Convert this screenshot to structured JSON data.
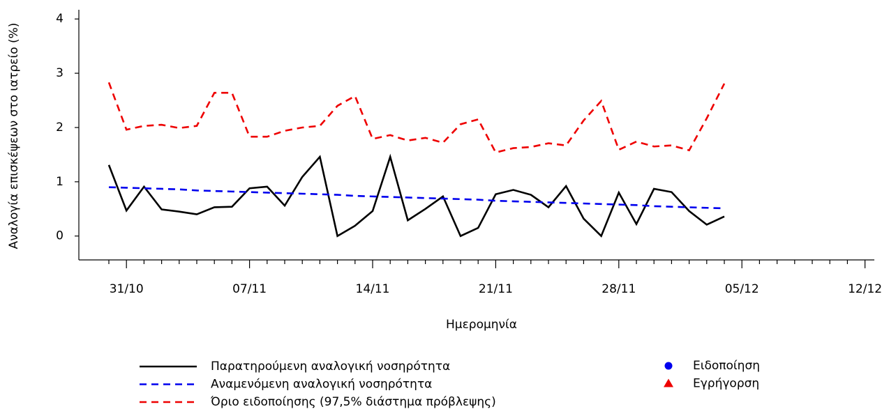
{
  "chart_data": {
    "type": "line",
    "y_label": "Αναλογία επισκέψεων στο ιατρείο (%)",
    "x_label": "Ημερομηνία",
    "categories": [
      null,
      "31/10",
      null,
      null,
      null,
      null,
      null,
      null,
      "07/11",
      null,
      null,
      null,
      null,
      null,
      null,
      "14/11",
      null,
      null,
      null,
      null,
      null,
      null,
      "21/11",
      null,
      null,
      null,
      null,
      null,
      null,
      "28/11",
      null,
      null,
      null,
      null,
      null,
      null,
      "05/12",
      null,
      null,
      null,
      null,
      null,
      null,
      "12/12"
    ],
    "series": [
      {
        "name": "Παρατηρούμενη αναλογική νοσηρότητα",
        "color": "#000000",
        "dash": "none",
        "values": [
          1.31,
          0.47,
          0.91,
          0.49,
          0.45,
          0.4,
          0.53,
          0.54,
          0.88,
          0.91,
          0.56,
          1.09,
          1.46,
          0,
          0.19,
          0.46,
          1.46,
          0.29,
          0.5,
          0.73,
          0,
          0.15,
          0.77,
          0.85,
          0.76,
          0.53,
          0.92,
          0.32,
          0,
          0.8,
          0.22,
          0.87,
          0.81,
          0.46,
          0.21,
          0.36,
          null,
          null,
          null,
          null,
          null,
          null,
          null,
          null
        ]
      },
      {
        "name": "Αναμενόμενη αναλογική νοσηρότητα",
        "color": "#0000ee",
        "dash": "10,7",
        "values": [
          0.9,
          0.89,
          0.88,
          0.87,
          0.86,
          0.84,
          0.83,
          0.82,
          0.81,
          0.8,
          0.79,
          0.78,
          0.77,
          0.76,
          0.74,
          0.73,
          0.72,
          0.71,
          0.7,
          0.69,
          0.68,
          0.67,
          0.65,
          0.64,
          0.63,
          0.62,
          0.61,
          0.6,
          0.59,
          0.58,
          0.57,
          0.55,
          0.54,
          0.53,
          0.52,
          0.51,
          null,
          null,
          null,
          null,
          null,
          null,
          null,
          null
        ]
      },
      {
        "name": "Όριο ειδοποίησης (97,5% διάστημα πρόβλεψης)",
        "color": "#ee0000",
        "dash": "10,7",
        "values": [
          2.83,
          1.96,
          2.03,
          2.05,
          1.99,
          2.03,
          2.64,
          2.64,
          1.83,
          1.83,
          1.94,
          2.0,
          2.03,
          2.4,
          2.58,
          1.79,
          1.86,
          1.76,
          1.81,
          1.72,
          2.06,
          2.15,
          1.54,
          1.62,
          1.64,
          1.71,
          1.67,
          2.13,
          2.49,
          1.59,
          1.74,
          1.65,
          1.67,
          1.58,
          2.17,
          2.81,
          null,
          null,
          null,
          null,
          null,
          null,
          null,
          null
        ]
      }
    ],
    "legend_markers": [
      {
        "name": "Ειδοποίηση",
        "color": "#0000ee",
        "shape": "circle"
      },
      {
        "name": "Εγρήγορση",
        "color": "#ee0000",
        "shape": "triangle"
      }
    ],
    "ylim": [
      -0.44,
      4.17
    ],
    "yticks": [
      0,
      1,
      2,
      3,
      4
    ]
  }
}
